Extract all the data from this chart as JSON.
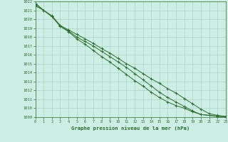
{
  "title": "Graphe pression niveau de la mer (hPa)",
  "bg_color": "#cceee4",
  "grid_color": "#aad4c4",
  "line_color": "#2d6e2d",
  "xlim": [
    0,
    23
  ],
  "ylim": [
    1009,
    1022
  ],
  "xticks": [
    0,
    1,
    2,
    3,
    4,
    5,
    6,
    7,
    8,
    9,
    10,
    11,
    12,
    13,
    14,
    15,
    16,
    17,
    18,
    19,
    20,
    21,
    22,
    23
  ],
  "yticks": [
    1009,
    1010,
    1011,
    1012,
    1013,
    1014,
    1015,
    1016,
    1017,
    1018,
    1019,
    1020,
    1021,
    1022
  ],
  "series": [
    [
      1021.8,
      1021.0,
      1020.3,
      1019.3,
      1018.8,
      1018.3,
      1017.8,
      1017.3,
      1016.7,
      1016.2,
      1015.6,
      1015.0,
      1014.5,
      1013.9,
      1013.3,
      1012.8,
      1012.2,
      1011.7,
      1011.1,
      1010.5,
      1009.9,
      1009.4,
      1009.2,
      1009.1
    ],
    [
      1021.5,
      1021.0,
      1020.4,
      1019.3,
      1018.7,
      1018.0,
      1017.5,
      1017.0,
      1016.4,
      1015.8,
      1015.2,
      1014.6,
      1013.9,
      1013.2,
      1012.5,
      1011.8,
      1011.2,
      1010.7,
      1010.2,
      1009.7,
      1009.3,
      1009.2,
      1009.1,
      1009.0
    ],
    [
      1021.7,
      1021.0,
      1020.3,
      1019.2,
      1018.6,
      1017.8,
      1017.2,
      1016.5,
      1015.8,
      1015.2,
      1014.5,
      1013.8,
      1013.1,
      1012.5,
      1011.8,
      1011.2,
      1010.7,
      1010.3,
      1010.0,
      1009.6,
      1009.3,
      1009.2,
      1009.1,
      1009.0
    ]
  ]
}
